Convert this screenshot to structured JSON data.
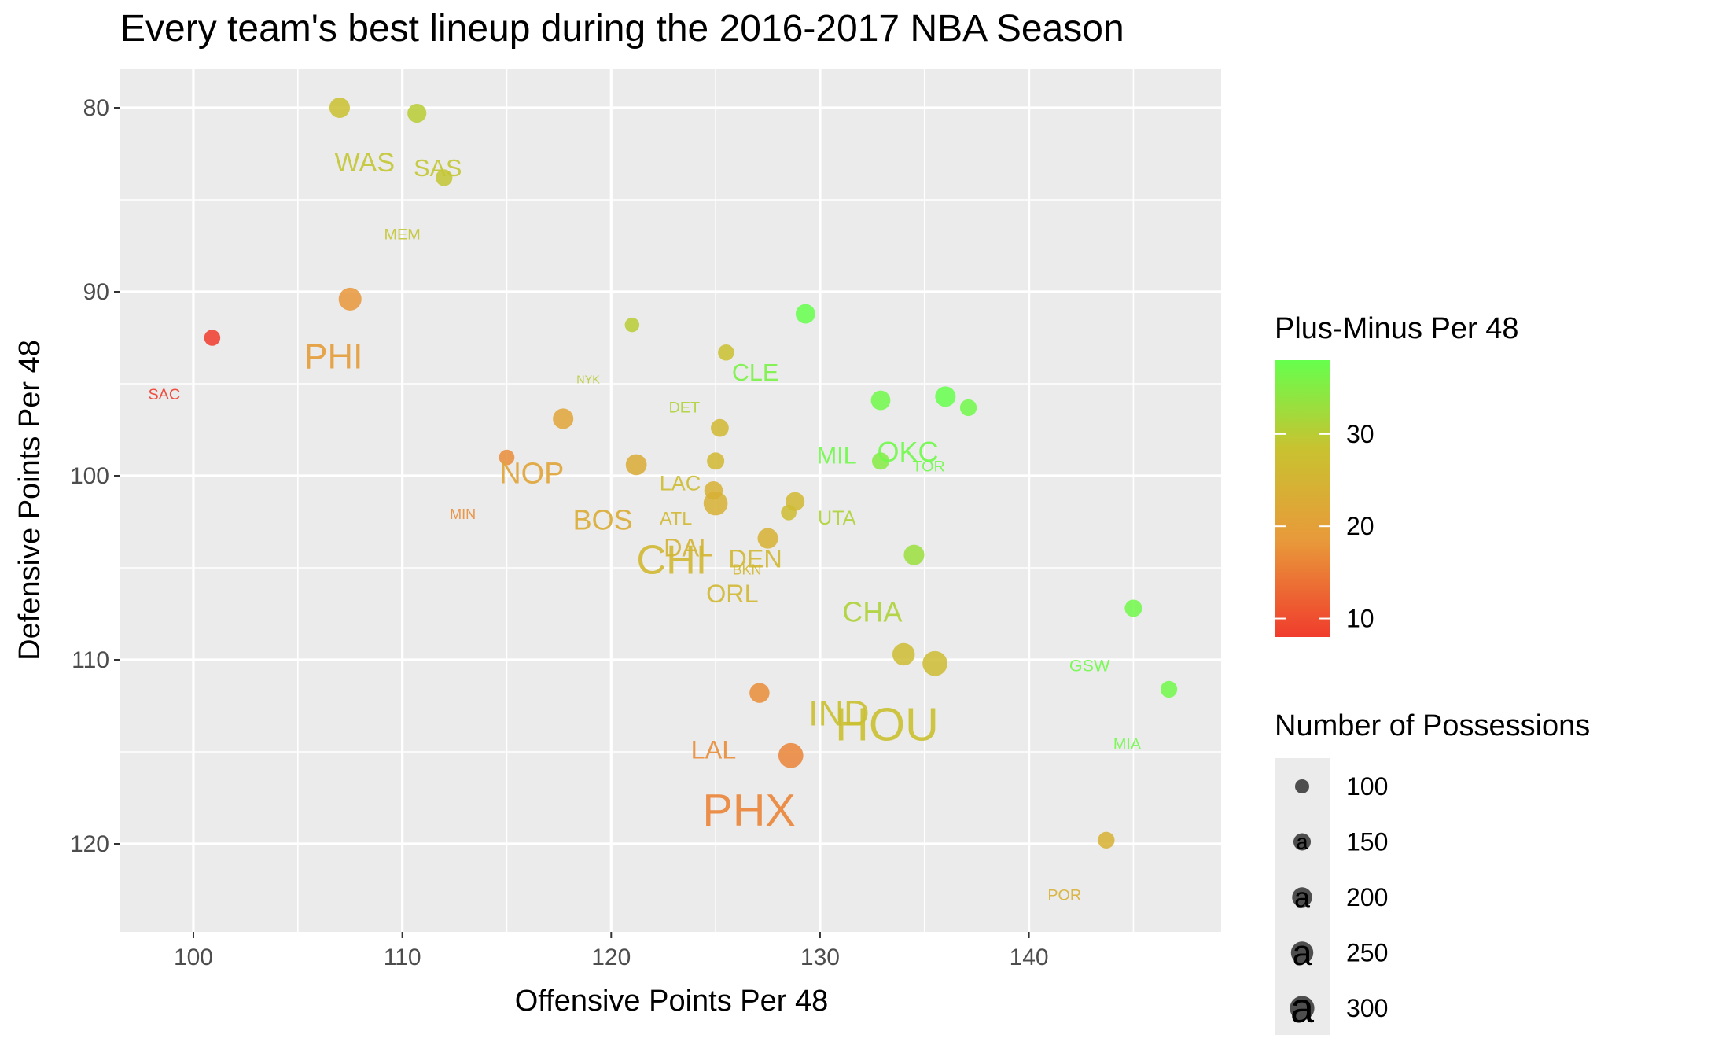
{
  "chart_data": {
    "type": "scatter",
    "title": "Every team's best lineup during the 2016-2017 NBA Season",
    "xlabel": "Offensive Points Per 48",
    "ylabel": "Defensive Points Per 48",
    "xlim": [
      96.5,
      149.2
    ],
    "ylim": [
      80,
      125
    ],
    "y_reversed": true,
    "x_ticks": [
      100,
      110,
      120,
      130,
      140
    ],
    "y_ticks": [
      80,
      90,
      100,
      110,
      120
    ],
    "grid": true,
    "background": "#EBEBEB",
    "color_scale": {
      "low": "#F03C2D",
      "mid": "#E89A3A",
      "mid2": "#C9C230",
      "high": "#66FF4D",
      "min": 8,
      "max": 38
    },
    "color_legend": {
      "title": "Plus-Minus Per 48",
      "ticks": [
        10,
        20,
        30
      ]
    },
    "size_legend": {
      "title": "Number of Possessions",
      "values": [
        100,
        150,
        200,
        250,
        300
      ]
    },
    "points": [
      {
        "x": 107.0,
        "y": 80.0,
        "pm": 28,
        "poss": 210
      },
      {
        "x": 110.7,
        "y": 80.3,
        "pm": 30,
        "poss": 180
      },
      {
        "x": 112.0,
        "y": 83.8,
        "pm": 29,
        "poss": 140
      },
      {
        "x": 107.5,
        "y": 90.4,
        "pm": 18,
        "poss": 260
      },
      {
        "x": 100.9,
        "y": 92.5,
        "pm": 8,
        "poss": 130
      },
      {
        "x": 121.0,
        "y": 91.8,
        "pm": 30,
        "poss": 105
      },
      {
        "x": 129.3,
        "y": 91.2,
        "pm": 38,
        "poss": 190
      },
      {
        "x": 125.5,
        "y": 93.3,
        "pm": 28,
        "poss": 130
      },
      {
        "x": 117.7,
        "y": 96.9,
        "pm": 21,
        "poss": 210
      },
      {
        "x": 132.9,
        "y": 95.9,
        "pm": 37,
        "poss": 190
      },
      {
        "x": 136.0,
        "y": 95.7,
        "pm": 38,
        "poss": 210
      },
      {
        "x": 137.1,
        "y": 96.3,
        "pm": 37,
        "poss": 140
      },
      {
        "x": 125.2,
        "y": 97.4,
        "pm": 26,
        "poss": 160
      },
      {
        "x": 115.0,
        "y": 99.0,
        "pm": 17,
        "poss": 120
      },
      {
        "x": 121.2,
        "y": 99.4,
        "pm": 23,
        "poss": 220
      },
      {
        "x": 125.0,
        "y": 99.2,
        "pm": 26,
        "poss": 150
      },
      {
        "x": 132.9,
        "y": 99.2,
        "pm": 35,
        "poss": 150
      },
      {
        "x": 124.9,
        "y": 100.8,
        "pm": 24,
        "poss": 170
      },
      {
        "x": 125.0,
        "y": 101.5,
        "pm": 24,
        "poss": 290
      },
      {
        "x": 128.8,
        "y": 101.4,
        "pm": 26,
        "poss": 180
      },
      {
        "x": 128.5,
        "y": 102.0,
        "pm": 27,
        "poss": 120
      },
      {
        "x": 127.5,
        "y": 103.4,
        "pm": 24,
        "poss": 210
      },
      {
        "x": 134.5,
        "y": 104.3,
        "pm": 33,
        "poss": 210
      },
      {
        "x": 145.0,
        "y": 107.2,
        "pm": 37,
        "poss": 150
      },
      {
        "x": 134.0,
        "y": 109.7,
        "pm": 27,
        "poss": 250
      },
      {
        "x": 135.5,
        "y": 110.2,
        "pm": 27,
        "poss": 310
      },
      {
        "x": 146.7,
        "y": 111.6,
        "pm": 37,
        "poss": 140
      },
      {
        "x": 127.1,
        "y": 111.8,
        "pm": 17,
        "poss": 200
      },
      {
        "x": 128.6,
        "y": 115.2,
        "pm": 16,
        "poss": 310
      },
      {
        "x": 143.7,
        "y": 119.8,
        "pm": 24,
        "poss": 140
      }
    ],
    "labels": [
      {
        "text": "WAS",
        "x": 108.2,
        "y": 83.0,
        "pm": 29,
        "poss": 190
      },
      {
        "text": "SAS",
        "x": 111.7,
        "y": 83.3,
        "pm": 29,
        "poss": 170
      },
      {
        "text": "MEM",
        "x": 110.0,
        "y": 86.9,
        "pm": 29,
        "poss": 110
      },
      {
        "text": "PHI",
        "x": 106.7,
        "y": 93.5,
        "pm": 19,
        "poss": 250
      },
      {
        "text": "SAC",
        "x": 98.6,
        "y": 95.6,
        "pm": 8,
        "poss": 110
      },
      {
        "text": "NYK",
        "x": 118.9,
        "y": 94.8,
        "pm": 30,
        "poss": 80
      },
      {
        "text": "CLE",
        "x": 126.9,
        "y": 94.4,
        "pm": 36,
        "poss": 170
      },
      {
        "text": "DET",
        "x": 123.5,
        "y": 96.3,
        "pm": 31,
        "poss": 110
      },
      {
        "text": "MIL",
        "x": 130.8,
        "y": 98.9,
        "pm": 37,
        "poss": 170
      },
      {
        "text": "OKC",
        "x": 134.2,
        "y": 98.7,
        "pm": 37,
        "poss": 200
      },
      {
        "text": "TOR",
        "x": 135.2,
        "y": 99.5,
        "pm": 37,
        "poss": 110
      },
      {
        "text": "NOP",
        "x": 116.2,
        "y": 99.9,
        "pm": 21,
        "poss": 210
      },
      {
        "text": "LAC",
        "x": 123.3,
        "y": 100.4,
        "pm": 27,
        "poss": 150
      },
      {
        "text": "MIN",
        "x": 112.9,
        "y": 102.1,
        "pm": 17,
        "poss": 100
      },
      {
        "text": "BOS",
        "x": 119.6,
        "y": 102.4,
        "pm": 23,
        "poss": 200
      },
      {
        "text": "ATL",
        "x": 123.1,
        "y": 102.3,
        "pm": 26,
        "poss": 130
      },
      {
        "text": "UTA",
        "x": 130.8,
        "y": 102.3,
        "pm": 31,
        "poss": 140
      },
      {
        "text": "DAL",
        "x": 123.7,
        "y": 103.9,
        "pm": 25,
        "poss": 180
      },
      {
        "text": "CHI",
        "x": 122.9,
        "y": 104.6,
        "pm": 26,
        "poss": 290
      },
      {
        "text": "DEN",
        "x": 126.9,
        "y": 104.5,
        "pm": 26,
        "poss": 180
      },
      {
        "text": "BKN",
        "x": 126.5,
        "y": 105.1,
        "pm": 26,
        "poss": 100
      },
      {
        "text": "ORL",
        "x": 125.8,
        "y": 106.4,
        "pm": 26,
        "poss": 180
      },
      {
        "text": "CHA",
        "x": 132.5,
        "y": 107.4,
        "pm": 31,
        "poss": 200
      },
      {
        "text": "GSW",
        "x": 142.9,
        "y": 110.3,
        "pm": 37,
        "poss": 120
      },
      {
        "text": "IND",
        "x": 130.9,
        "y": 112.9,
        "pm": 28,
        "poss": 250
      },
      {
        "text": "HOU",
        "x": 133.2,
        "y": 113.5,
        "pm": 28,
        "poss": 330
      },
      {
        "text": "MIA",
        "x": 144.7,
        "y": 114.6,
        "pm": 37,
        "poss": 110
      },
      {
        "text": "LAL",
        "x": 124.9,
        "y": 114.9,
        "pm": 17,
        "poss": 180
      },
      {
        "text": "PHX",
        "x": 126.6,
        "y": 118.2,
        "pm": 16,
        "poss": 320
      },
      {
        "text": "POR",
        "x": 141.7,
        "y": 122.8,
        "pm": 24,
        "poss": 110
      }
    ]
  }
}
